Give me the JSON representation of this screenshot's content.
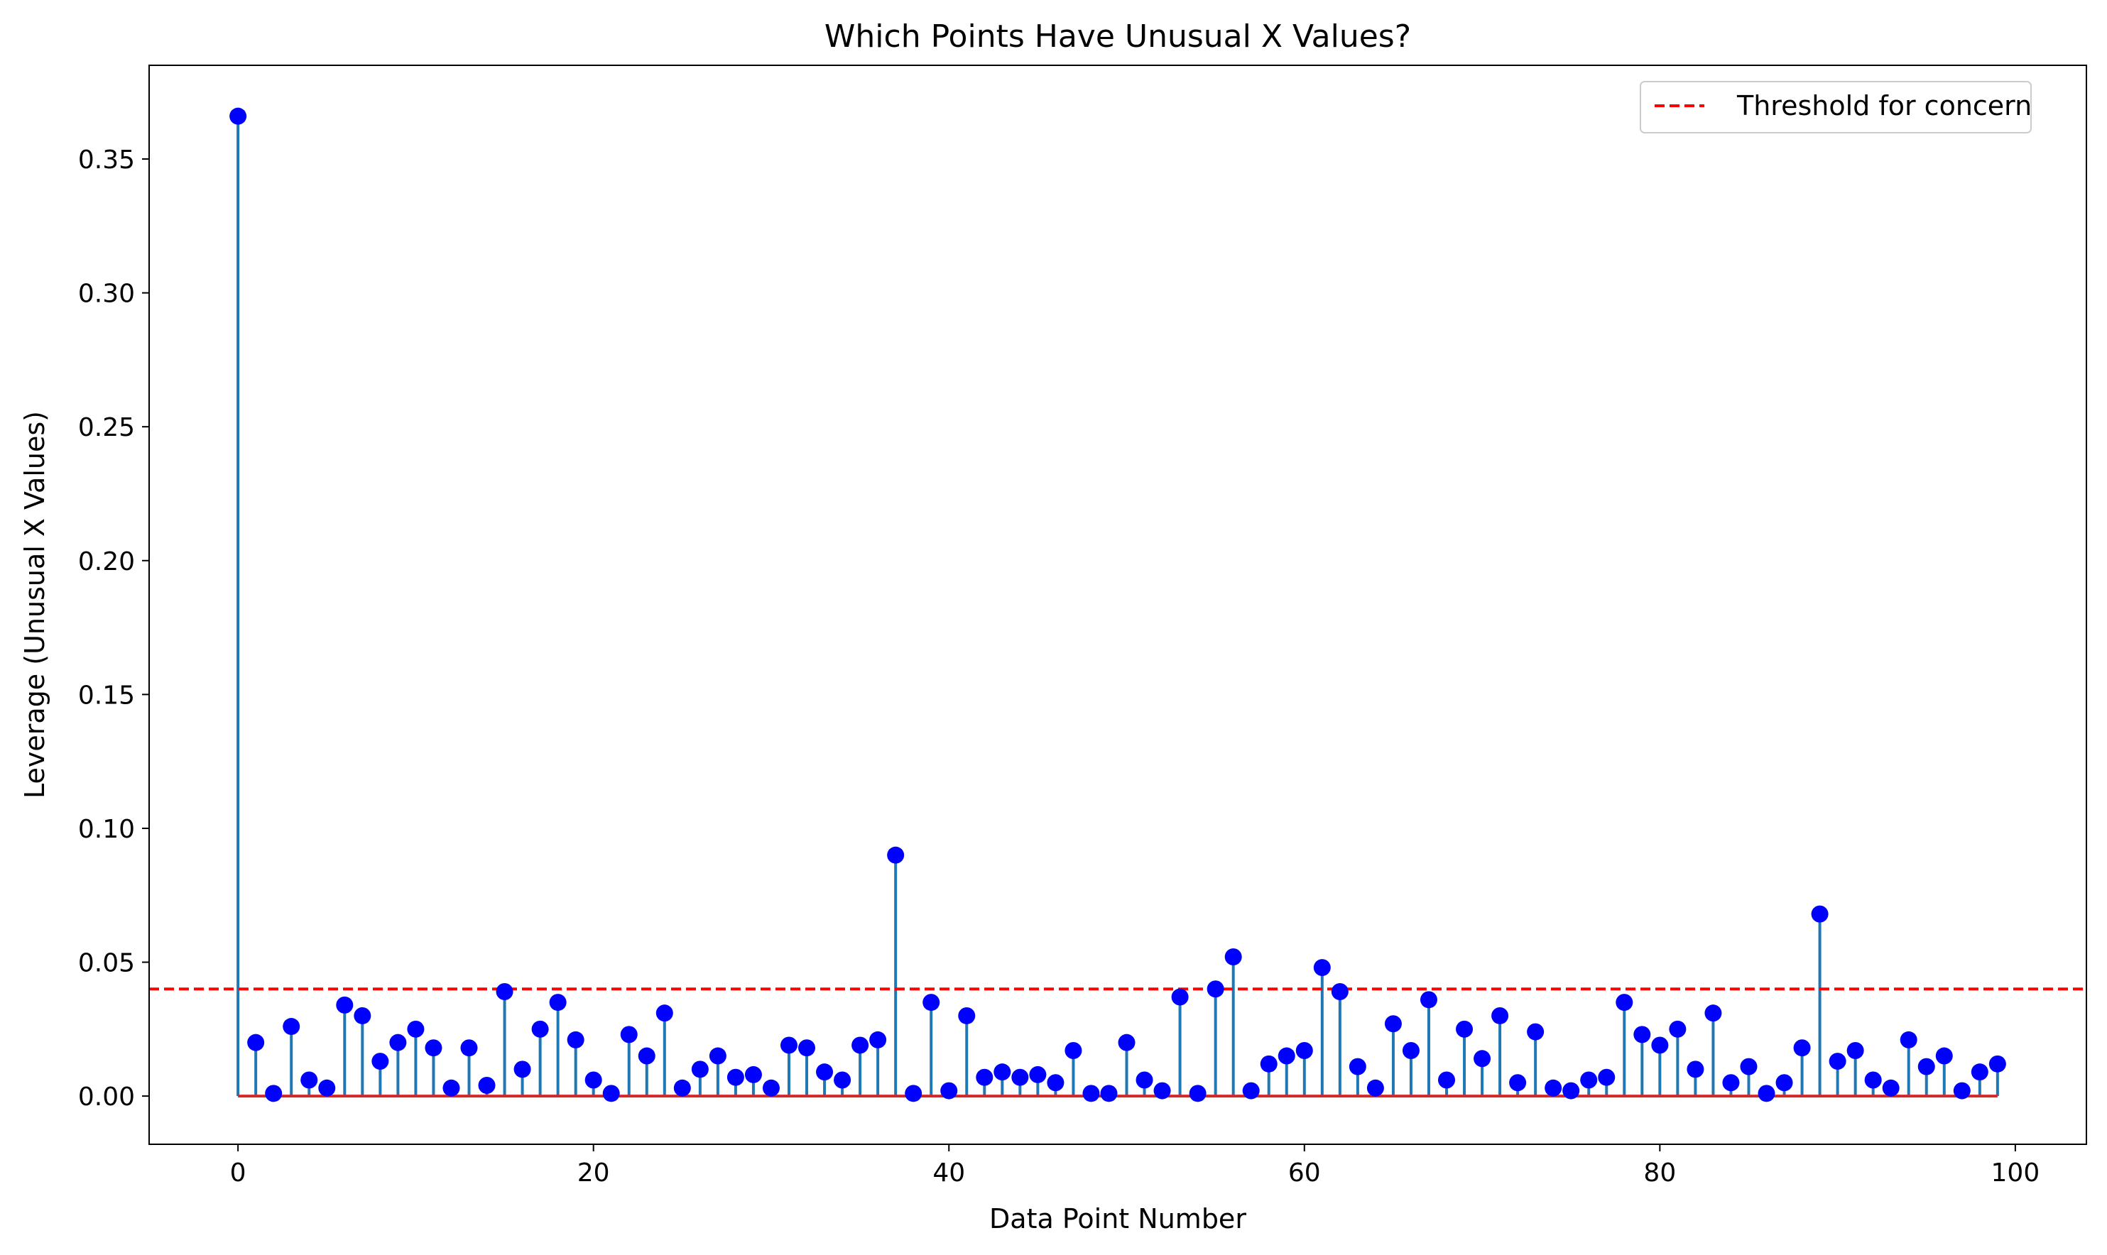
{
  "chart_data": {
    "type": "stem",
    "title": "Which Points Have Unusual X Values?",
    "xlabel": "Data Point Number",
    "ylabel": "Leverage (Unusual X Values)",
    "xlim": [
      -5,
      104
    ],
    "ylim": [
      -0.018,
      0.385
    ],
    "xticks": [
      0,
      20,
      40,
      60,
      80,
      100
    ],
    "yticks": [
      0.0,
      0.05,
      0.1,
      0.15,
      0.2,
      0.25,
      0.3,
      0.35
    ],
    "xtick_labels": [
      "0",
      "20",
      "40",
      "60",
      "80",
      "100"
    ],
    "ytick_labels": [
      "0.00",
      "0.05",
      "0.10",
      "0.15",
      "0.20",
      "0.25",
      "0.30",
      "0.35"
    ],
    "grid": false,
    "legend_position": "top-right",
    "colors": {
      "stem": "#1f77b4",
      "marker": "#0000ff",
      "baseline": "#d62728",
      "threshold": "#ff0000"
    },
    "threshold": {
      "label": "Threshold for concern",
      "value": 0.04
    },
    "x": [
      0,
      1,
      2,
      3,
      4,
      5,
      6,
      7,
      8,
      9,
      10,
      11,
      12,
      13,
      14,
      15,
      16,
      17,
      18,
      19,
      20,
      21,
      22,
      23,
      24,
      25,
      26,
      27,
      28,
      29,
      30,
      31,
      32,
      33,
      34,
      35,
      36,
      37,
      38,
      39,
      40,
      41,
      42,
      43,
      44,
      45,
      46,
      47,
      48,
      49,
      50,
      51,
      52,
      53,
      54,
      55,
      56,
      57,
      58,
      59,
      60,
      61,
      62,
      63,
      64,
      65,
      66,
      67,
      68,
      69,
      70,
      71,
      72,
      73,
      74,
      75,
      76,
      77,
      78,
      79,
      80,
      81,
      82,
      83,
      84,
      85,
      86,
      87,
      88,
      89,
      90,
      91,
      92,
      93,
      94,
      95,
      96,
      97,
      98,
      99
    ],
    "values": [
      0.366,
      0.02,
      0.001,
      0.026,
      0.006,
      0.003,
      0.034,
      0.03,
      0.013,
      0.02,
      0.025,
      0.018,
      0.003,
      0.018,
      0.004,
      0.039,
      0.01,
      0.025,
      0.035,
      0.021,
      0.006,
      0.001,
      0.023,
      0.015,
      0.031,
      0.003,
      0.01,
      0.015,
      0.007,
      0.008,
      0.003,
      0.019,
      0.018,
      0.009,
      0.006,
      0.019,
      0.021,
      0.09,
      0.001,
      0.035,
      0.002,
      0.03,
      0.007,
      0.009,
      0.007,
      0.008,
      0.005,
      0.017,
      0.001,
      0.001,
      0.02,
      0.006,
      0.002,
      0.037,
      0.001,
      0.04,
      0.052,
      0.002,
      0.012,
      0.015,
      0.017,
      0.048,
      0.039,
      0.011,
      0.003,
      0.027,
      0.017,
      0.036,
      0.006,
      0.025,
      0.014,
      0.03,
      0.005,
      0.024,
      0.003,
      0.002,
      0.006,
      0.007,
      0.035,
      0.023,
      0.019,
      0.025,
      0.01,
      0.031,
      0.005,
      0.011,
      0.001,
      0.005,
      0.018,
      0.068,
      0.013,
      0.017,
      0.006,
      0.003,
      0.021,
      0.011,
      0.015,
      0.002,
      0.009,
      0.012
    ]
  }
}
